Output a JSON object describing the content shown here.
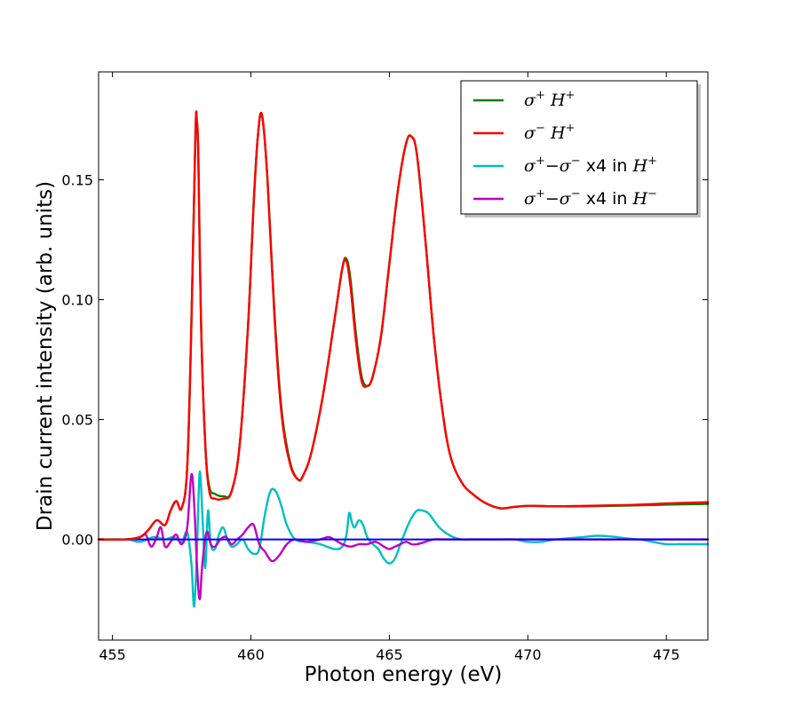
{
  "chart_data": {
    "type": "line",
    "title": "",
    "xlabel": "Photon energy (eV)",
    "ylabel": "Drain current intensity (arb. units)",
    "xlim": [
      454.5,
      476.5
    ],
    "ylim": [
      -0.042,
      0.195
    ],
    "xticks": [
      455,
      460,
      465,
      470,
      475
    ],
    "xtick_labels": [
      "455",
      "460",
      "465",
      "470",
      "475"
    ],
    "yticks": [
      0.0,
      0.05,
      0.1,
      0.15
    ],
    "ytick_labels": [
      "0.00",
      "0.05",
      "0.10",
      "0.15"
    ],
    "grid": false,
    "legend_position": "top-right",
    "legend": [
      {
        "sym": "σ",
        "sup": "+",
        "h": "H",
        "hsup": "+",
        "suffix": "",
        "color": "#008000"
      },
      {
        "sym": "σ",
        "sup": "−",
        "h": "H",
        "hsup": "+",
        "suffix": "",
        "color": "#ff0000"
      },
      {
        "sym": "σ",
        "sup": "+",
        "mid": "−σ",
        "midsup": "−",
        "h": "H",
        "hsup": "+",
        "suffix": "x4 in",
        "color": "#00bfbf"
      },
      {
        "sym": "σ",
        "sup": "+",
        "mid": "−σ",
        "midsup": "−",
        "h": "H",
        "hsup": "−",
        "suffix": "x4 in",
        "color": "#bf00bf"
      }
    ],
    "series": [
      {
        "key": "sigma_plus_Hplus",
        "color": "#008000",
        "x": [
          454.5,
          455.5,
          456.0,
          456.3,
          456.6,
          456.9,
          457.1,
          457.3,
          457.5,
          457.7,
          457.85,
          458.0,
          458.05,
          458.1,
          458.2,
          458.35,
          458.5,
          458.7,
          459.0,
          459.3,
          459.6,
          459.9,
          460.1,
          460.25,
          460.4,
          460.6,
          460.85,
          461.1,
          461.4,
          461.7,
          461.9,
          462.2,
          462.6,
          463.0,
          463.3,
          463.45,
          463.6,
          463.8,
          464.0,
          464.2,
          464.4,
          464.7,
          465.0,
          465.3,
          465.6,
          465.8,
          466.0,
          466.3,
          466.6,
          466.9,
          467.2,
          467.6,
          468.0,
          468.5,
          469.0,
          469.5,
          470.0,
          471.0,
          472.0,
          473.0,
          474.0,
          475.0,
          476.5
        ],
        "y": [
          0.0,
          0.0,
          0.001,
          0.004,
          0.008,
          0.006,
          0.012,
          0.016,
          0.013,
          0.03,
          0.09,
          0.17,
          0.174,
          0.16,
          0.09,
          0.04,
          0.022,
          0.019,
          0.018,
          0.02,
          0.04,
          0.09,
          0.14,
          0.168,
          0.177,
          0.15,
          0.095,
          0.055,
          0.033,
          0.025,
          0.027,
          0.037,
          0.06,
          0.09,
          0.113,
          0.117,
          0.108,
          0.085,
          0.068,
          0.064,
          0.068,
          0.085,
          0.115,
          0.145,
          0.165,
          0.168,
          0.16,
          0.125,
          0.085,
          0.055,
          0.035,
          0.024,
          0.019,
          0.015,
          0.013,
          0.0135,
          0.014,
          0.0138,
          0.0138,
          0.014,
          0.0142,
          0.0145,
          0.0148
        ]
      },
      {
        "key": "sigma_minus_Hplus",
        "color": "#ff0000",
        "x": [
          454.5,
          455.5,
          456.0,
          456.3,
          456.6,
          456.9,
          457.1,
          457.3,
          457.5,
          457.7,
          457.85,
          458.0,
          458.05,
          458.1,
          458.2,
          458.35,
          458.5,
          458.7,
          459.0,
          459.3,
          459.6,
          459.9,
          460.1,
          460.25,
          460.4,
          460.6,
          460.85,
          461.1,
          461.4,
          461.7,
          461.9,
          462.2,
          462.6,
          463.0,
          463.3,
          463.45,
          463.6,
          463.8,
          464.0,
          464.2,
          464.4,
          464.7,
          465.0,
          465.3,
          465.6,
          465.8,
          466.0,
          466.3,
          466.6,
          466.9,
          467.2,
          467.6,
          468.0,
          468.5,
          469.0,
          469.5,
          470.0,
          471.0,
          472.0,
          473.0,
          474.0,
          475.0,
          476.5
        ],
        "y": [
          0.0,
          0.0,
          0.001,
          0.004,
          0.008,
          0.006,
          0.012,
          0.016,
          0.013,
          0.03,
          0.09,
          0.17,
          0.174,
          0.16,
          0.09,
          0.04,
          0.02,
          0.017,
          0.017,
          0.02,
          0.04,
          0.09,
          0.14,
          0.168,
          0.177,
          0.15,
          0.093,
          0.053,
          0.032,
          0.025,
          0.027,
          0.037,
          0.06,
          0.09,
          0.113,
          0.116,
          0.105,
          0.082,
          0.066,
          0.064,
          0.068,
          0.085,
          0.115,
          0.145,
          0.165,
          0.168,
          0.16,
          0.125,
          0.085,
          0.055,
          0.035,
          0.024,
          0.019,
          0.015,
          0.013,
          0.0135,
          0.014,
          0.0138,
          0.014,
          0.0142,
          0.0145,
          0.015,
          0.0155
        ]
      },
      {
        "key": "diff_x4_Hplus",
        "color": "#00bfbf",
        "x": [
          454.5,
          455.5,
          456.0,
          456.5,
          456.9,
          457.2,
          457.5,
          457.7,
          457.85,
          457.95,
          458.05,
          458.15,
          458.25,
          458.35,
          458.45,
          458.55,
          458.7,
          458.85,
          459.0,
          459.15,
          459.3,
          459.5,
          459.7,
          459.9,
          460.1,
          460.3,
          460.5,
          460.7,
          460.9,
          461.1,
          461.3,
          461.6,
          462.0,
          462.5,
          463.0,
          463.3,
          463.45,
          463.55,
          463.65,
          463.75,
          463.9,
          464.05,
          464.2,
          464.4,
          464.6,
          464.8,
          465.0,
          465.2,
          465.4,
          465.6,
          465.8,
          466.0,
          466.2,
          466.4,
          466.6,
          466.8,
          467.0,
          467.3,
          467.6,
          468.0,
          468.5,
          469.0,
          469.5,
          470.0,
          470.5,
          471.0,
          471.5,
          472.0,
          472.5,
          473.0,
          473.5,
          474.0,
          474.5,
          475.0,
          475.5,
          476.5
        ],
        "y": [
          0.0,
          0.0,
          -0.001,
          0.001,
          0.0,
          0.001,
          -0.001,
          0.003,
          -0.01,
          -0.028,
          -0.005,
          0.028,
          0.01,
          -0.012,
          0.012,
          -0.002,
          -0.004,
          0.002,
          0.005,
          0.0,
          -0.003,
          -0.002,
          0.0,
          -0.004,
          -0.006,
          -0.004,
          0.01,
          0.02,
          0.02,
          0.014,
          0.006,
          0.0,
          -0.001,
          -0.002,
          -0.004,
          -0.003,
          0.002,
          0.011,
          0.007,
          0.005,
          0.008,
          0.006,
          0.001,
          -0.002,
          -0.004,
          -0.008,
          -0.01,
          -0.008,
          -0.002,
          0.004,
          0.009,
          0.012,
          0.012,
          0.011,
          0.008,
          0.005,
          0.003,
          0.001,
          0.0,
          0.0,
          0.0,
          0.0,
          0.0,
          -0.001,
          -0.001,
          0.0,
          0.0005,
          0.001,
          0.0015,
          0.0012,
          0.0005,
          0.0,
          -0.001,
          -0.002,
          -0.002,
          -0.002
        ]
      },
      {
        "key": "diff_x4_Hminus",
        "color": "#bf00bf",
        "x": [
          454.5,
          455.5,
          456.0,
          456.2,
          456.4,
          456.6,
          456.75,
          456.9,
          457.1,
          457.3,
          457.5,
          457.7,
          457.85,
          457.95,
          458.05,
          458.15,
          458.25,
          458.4,
          458.55,
          458.7,
          458.9,
          459.1,
          459.3,
          459.5,
          459.7,
          459.9,
          460.1,
          460.3,
          460.5,
          460.75,
          461.0,
          461.3,
          461.6,
          462.0,
          462.5,
          462.8,
          463.0,
          463.3,
          463.6,
          463.9,
          464.2,
          464.5,
          464.8,
          465.0,
          465.2,
          465.4,
          465.6,
          465.8,
          466.0,
          466.3,
          466.6,
          467.0,
          468.0,
          470.0,
          472.0,
          474.0,
          476.5
        ],
        "y": [
          0.0,
          0.0,
          0.001,
          0.002,
          -0.003,
          0.001,
          0.005,
          -0.003,
          -0.001,
          0.002,
          -0.002,
          0.005,
          0.027,
          0.015,
          -0.01,
          -0.025,
          -0.01,
          0.003,
          -0.002,
          -0.003,
          0.0,
          0.001,
          -0.002,
          0.0,
          0.002,
          0.005,
          0.006,
          -0.002,
          -0.005,
          -0.009,
          -0.007,
          -0.002,
          0.0,
          -0.001,
          0.0,
          0.001,
          0.0,
          -0.002,
          -0.003,
          -0.002,
          -0.002,
          -0.001,
          -0.003,
          -0.004,
          -0.003,
          -0.002,
          -0.001,
          -0.002,
          -0.002,
          -0.001,
          0.0,
          0.0,
          0.0,
          0.0,
          0.0,
          0.0,
          0.0
        ]
      },
      {
        "key": "zero_line",
        "color": "#0000ff",
        "x": [
          454.5,
          476.5
        ],
        "y": [
          0.0,
          0.0
        ]
      }
    ]
  }
}
